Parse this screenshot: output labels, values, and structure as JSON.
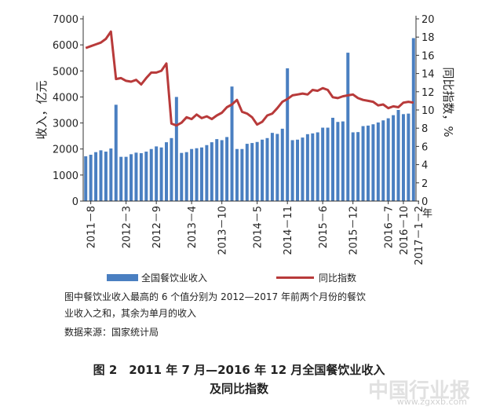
{
  "chart_data": {
    "type": "bar+line",
    "left_axis": {
      "label": "收入，亿元",
      "ylim": [
        0,
        7000
      ],
      "ticks": [
        "0",
        "1000",
        "2000",
        "3000",
        "4000",
        "5000",
        "6000",
        "7000"
      ]
    },
    "right_axis": {
      "label": "同比指数，%",
      "ylim": [
        0,
        20
      ],
      "ticks": [
        "0",
        "2",
        "4",
        "6",
        "8",
        "10",
        "12",
        "14",
        "16",
        "18",
        "20"
      ],
      "unit_label": "年"
    },
    "x_start": "2011-07",
    "x_tick_labels": [
      "2011－8",
      "2012－3",
      "2012－9",
      "2013－4",
      "2013－10",
      "2014－5",
      "2014－11",
      "2015－6",
      "2015－12",
      "2016－7",
      "2016－10",
      "2017－1－2"
    ],
    "x_tick_index": [
      1,
      8,
      14,
      21,
      27,
      34,
      40,
      47,
      53,
      60,
      63,
      66
    ],
    "series": [
      {
        "name": "全国餐饮业收入",
        "kind": "bar",
        "color": "#4a7fc1",
        "values": [
          1720,
          1780,
          1880,
          1950,
          1900,
          2020,
          3700,
          1700,
          1700,
          1800,
          1860,
          1840,
          1900,
          2000,
          2100,
          2060,
          2260,
          2420,
          4000,
          1850,
          1880,
          2000,
          2030,
          2060,
          2150,
          2260,
          2380,
          2340,
          2460,
          4400,
          2000,
          2000,
          2200,
          2230,
          2270,
          2360,
          2420,
          2620,
          2580,
          2780,
          5100,
          2340,
          2360,
          2440,
          2570,
          2600,
          2640,
          2820,
          2820,
          3200,
          3040,
          3060,
          5700,
          2640,
          2650,
          2880,
          2900,
          2950,
          3020,
          3100,
          3180,
          3300,
          3500,
          3340,
          3360,
          6260
        ]
      },
      {
        "name": "同比指数",
        "kind": "line",
        "color": "#b83a3a",
        "values": [
          16.8,
          17.0,
          17.2,
          17.4,
          17.8,
          18.6,
          13.4,
          13.5,
          13.2,
          13.1,
          13.3,
          12.8,
          13.5,
          14.1,
          14.1,
          14.3,
          15.1,
          8.5,
          8.3,
          8.6,
          9.2,
          9.0,
          9.5,
          9.1,
          9.3,
          9.0,
          9.4,
          9.7,
          10.3,
          10.6,
          11.1,
          9.8,
          9.6,
          9.2,
          8.4,
          8.7,
          9.4,
          9.6,
          10.2,
          10.9,
          11.2,
          11.6,
          11.7,
          11.8,
          11.7,
          12.2,
          12.1,
          12.4,
          12.2,
          11.4,
          11.3,
          11.5,
          11.6,
          11.7,
          11.3,
          11.1,
          11.0,
          10.9,
          10.5,
          10.6,
          10.2,
          10.4,
          10.3,
          10.8,
          10.9,
          10.8
        ]
      }
    ]
  },
  "legend": {
    "bar_label": "全国餐饮业收入",
    "line_label": "同比指数"
  },
  "note": {
    "line1": "图中餐饮业收入最高的 6 个值分别为 2012—2017 年前两个月份的餐饮",
    "line2": "业收入之和，其余为单月的收入",
    "line3": "数据来源：国家统计局"
  },
  "caption": {
    "line1": "图 2　2011 年 7 月—2016 年 12 月全国餐饮业收入",
    "line2": "及同比指数"
  },
  "watermark": {
    "text": "中国行业报",
    "url": "www.zgxxb.com"
  },
  "colors": {
    "bar": "#4a7fc1",
    "line": "#b83a3a",
    "axis": "#333333"
  }
}
